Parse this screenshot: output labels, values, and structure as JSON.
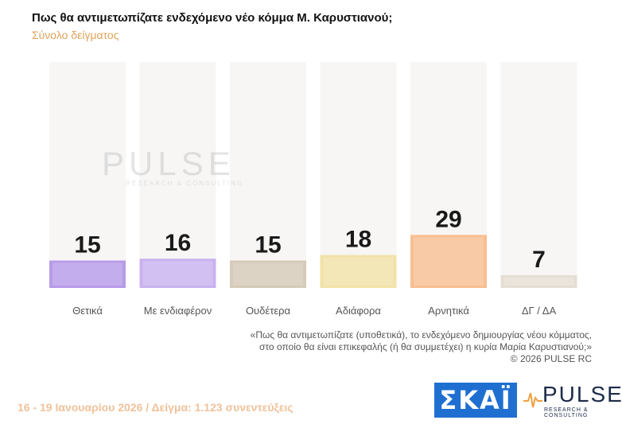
{
  "title": "Πως θα αντιμετωπίζατε ενδεχόμενο νέο κόμμα Μ. Καρυστιανού;",
  "subtitle": "Σύνολο δείγματος",
  "watermark": {
    "word": "PULSE",
    "sub": "RESEARCH & CONSULTING"
  },
  "footnote": {
    "line1": "«Πως θα αντιμετωπίζατε (υποθετικά), το ενδεχόμενο δημιουργίας νέου κόμματος,",
    "line2": "στο οποίο θα είναι επικεφαλής (ή θα συμμετέχει) η κυρία Μαρία Καρυστιανού;»",
    "line3": "©  2026  PULSE RC"
  },
  "fieldwork": "16 - 19 Ιανουαρίου 2026  /  Δείγμα:  1.123 συνεντεύξεις",
  "logos": {
    "skai": "ΣΚΑΪ",
    "pulse_word": "PULSE",
    "pulse_sub": "RESEARCH & CONSULTING"
  },
  "chart_data": {
    "type": "bar",
    "categories": [
      "Θετικά",
      "Με ενδιαφέρον",
      "Ουδέτερα",
      "Αδιάφορα",
      "Αρνητικά",
      "ΔΓ / ΔΑ"
    ],
    "values": [
      15,
      16,
      15,
      18,
      29,
      7
    ],
    "colors": [
      "#b79be8",
      "#c9b2ef",
      "#d6cab8",
      "#f2e2a8",
      "#f7bf92",
      "#e6ded3"
    ],
    "ylim": [
      0,
      100
    ],
    "grid": false,
    "legend": "none"
  }
}
